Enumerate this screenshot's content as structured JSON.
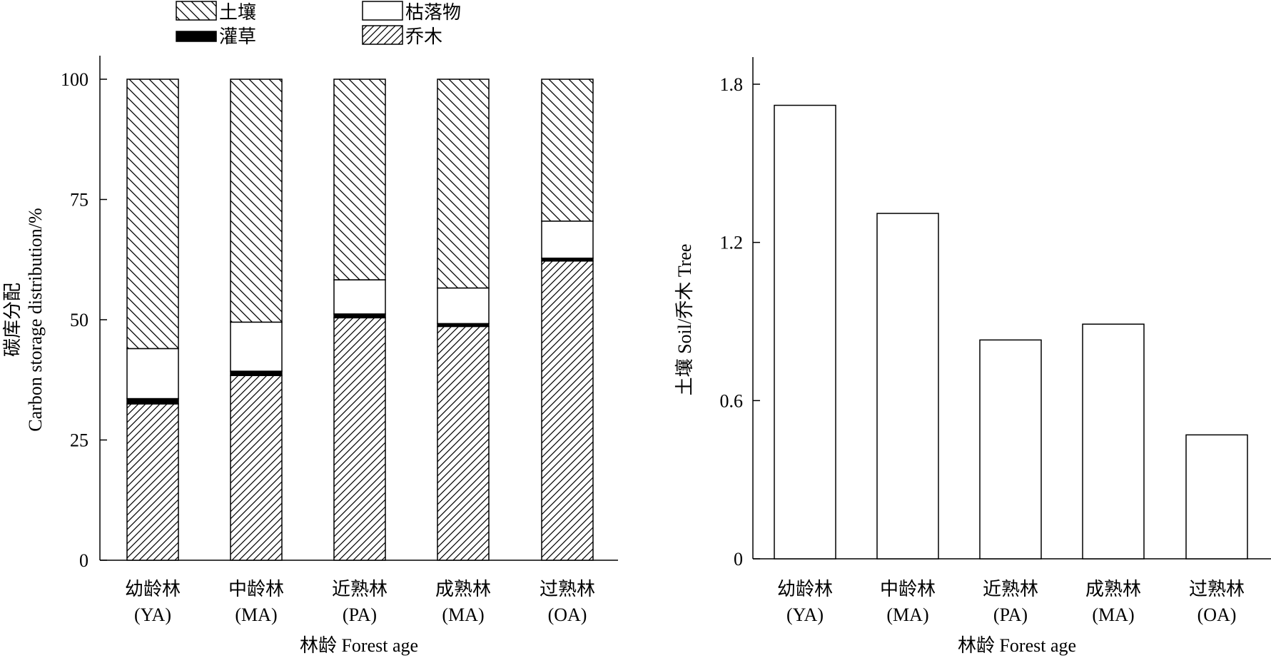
{
  "chart_data": [
    {
      "type": "bar",
      "stacked": true,
      "ylabel_lines": [
        "碳库分配",
        "Carbon storage distribution/%"
      ],
      "xlabel": "林龄 Forest age",
      "ylim": [
        0,
        100
      ],
      "yticks": [
        "0",
        "25",
        "50",
        "75",
        "100"
      ],
      "categories": [
        {
          "line1": "幼龄林",
          "line2": "(YA)"
        },
        {
          "line1": "中龄林",
          "line2": "(MA)"
        },
        {
          "line1": "近熟林",
          "line2": "(PA)"
        },
        {
          "line1": "成熟林",
          "line2": "(MA)"
        },
        {
          "line1": "过熟林",
          "line2": "(OA)"
        }
      ],
      "legend": [
        {
          "label": "土壤",
          "fill": "hatch-back",
          "color": "#000000"
        },
        {
          "label": "枯落物",
          "fill": "white",
          "color": "#ffffff"
        },
        {
          "label": "灌草",
          "fill": "solid",
          "color": "#000000"
        },
        {
          "label": "乔木",
          "fill": "hatch-forward",
          "color": "#000000"
        }
      ],
      "legend_position": "top-left",
      "series": [
        {
          "name": "乔木",
          "fill": "hatch-forward",
          "values": [
            32.5,
            38.4,
            50.4,
            48.6,
            62.2
          ]
        },
        {
          "name": "灌草",
          "fill": "solid",
          "values": [
            1.1,
            0.9,
            0.8,
            0.6,
            0.6
          ]
        },
        {
          "name": "枯落物",
          "fill": "white",
          "values": [
            10.4,
            10.2,
            7.1,
            7.4,
            7.7
          ]
        },
        {
          "name": "土壤",
          "fill": "hatch-back",
          "values": [
            56.0,
            50.5,
            41.7,
            43.4,
            29.5
          ]
        }
      ]
    },
    {
      "type": "bar",
      "ylabel": "土壤 Soil/乔木 Tree",
      "xlabel": "林龄 Forest age",
      "ylim": [
        0,
        1.9
      ],
      "yticks": [
        {
          "label": "0",
          "value": 0
        },
        {
          "label": "0.6",
          "value": 0.6
        },
        {
          "label": "1.2",
          "value": 1.2
        },
        {
          "label": "1.8",
          "value": 1.8
        }
      ],
      "categories": [
        {
          "line1": "幼龄林",
          "line2": "(YA)"
        },
        {
          "line1": "中龄林",
          "line2": "(MA)"
        },
        {
          "line1": "近熟林",
          "line2": "(PA)"
        },
        {
          "line1": "成熟林",
          "line2": "(MA)"
        },
        {
          "line1": "过熟林",
          "line2": "(OA)"
        }
      ],
      "values": [
        1.72,
        1.31,
        0.83,
        0.89,
        0.47
      ]
    }
  ]
}
